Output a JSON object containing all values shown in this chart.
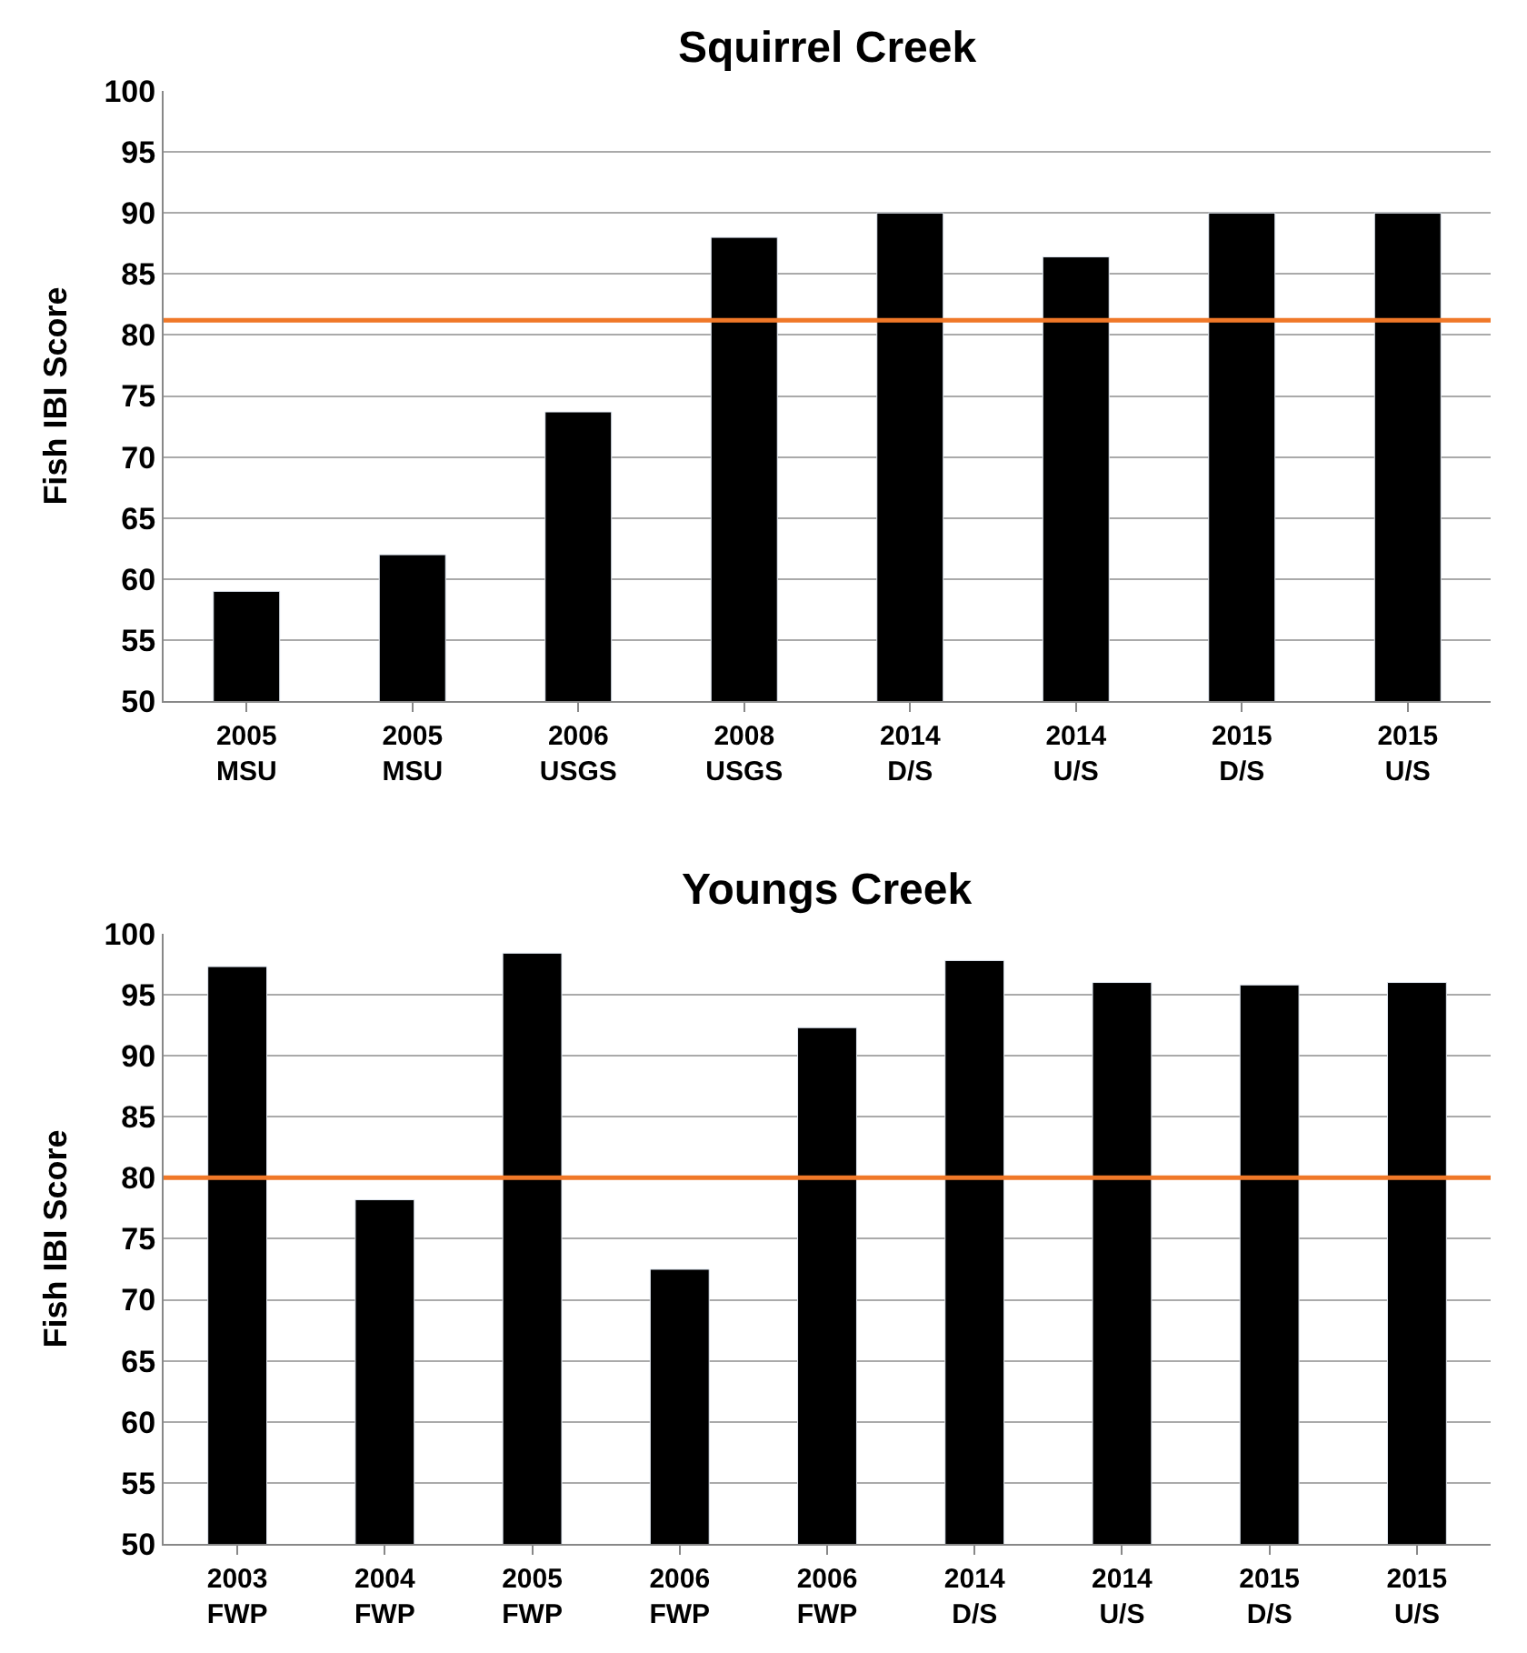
{
  "chart_data": [
    {
      "type": "bar",
      "title": "Squirrel Creek",
      "ylabel": "Fish IBI Score",
      "categories": [
        "2005\nMSU",
        "2005\nMSU",
        "2006\nUSGS",
        "2008\nUSGS",
        "2014\nD/S",
        "2014\nU/S",
        "2015\nD/S",
        "2015\nU/S"
      ],
      "series": [
        {
          "color": "#000000",
          "values": [
            59,
            62,
            73.7,
            88,
            90,
            86.4,
            90,
            90
          ]
        }
      ],
      "ylim": [
        50,
        100
      ],
      "yticks": [
        50,
        55,
        60,
        65,
        70,
        75,
        80,
        85,
        90,
        95,
        100
      ],
      "grid": "y",
      "ref_lines": [
        {
          "axis": "y",
          "value": 81.2,
          "color": "#f07828"
        }
      ]
    },
    {
      "type": "bar",
      "title": "Youngs Creek",
      "ylabel": "Fish IBI Score",
      "categories": [
        "2003\nFWP",
        "2004\nFWP",
        "2005\nFWP",
        "2006\nFWP",
        "2006\nFWP",
        "2014\nD/S",
        "2014\nU/S",
        "2015\nD/S",
        "2015\nU/S"
      ],
      "series": [
        {
          "color": "#000000",
          "values": [
            97.3,
            78.2,
            98.4,
            72.5,
            92.3,
            97.8,
            96,
            95.8,
            96
          ]
        }
      ],
      "ylim": [
        50,
        100
      ],
      "yticks": [
        50,
        55,
        60,
        65,
        70,
        75,
        80,
        85,
        90,
        95,
        100
      ],
      "grid": "y",
      "ref_lines": [
        {
          "axis": "y",
          "value": 80,
          "color": "#f07828"
        }
      ]
    }
  ]
}
